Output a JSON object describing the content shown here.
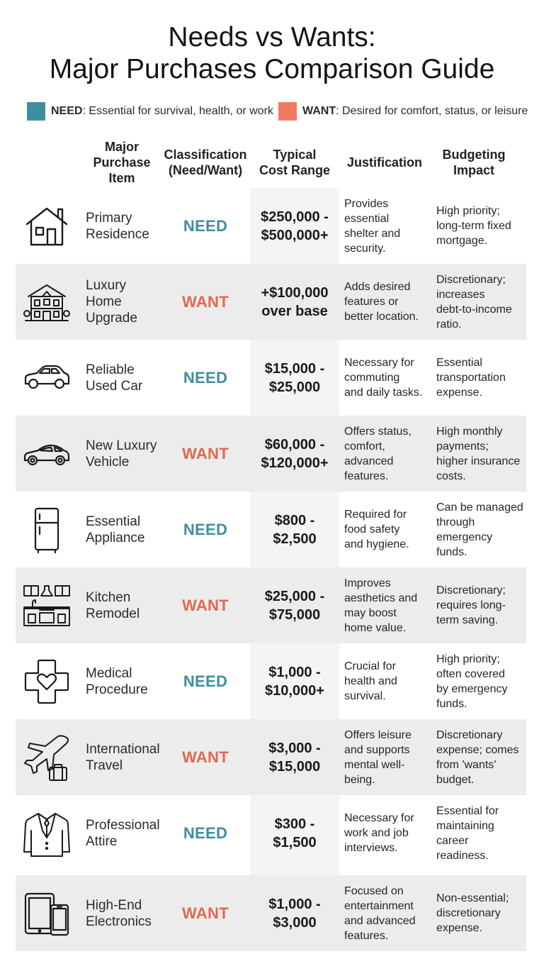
{
  "title": {
    "line1": "Needs vs Wants:",
    "line2": "Major Purchases Comparison Guide"
  },
  "legend": {
    "need": {
      "label": "NEED",
      "description": ": Essential for survival, health, or work",
      "color": "#3f8e9f"
    },
    "want": {
      "label": "WANT",
      "description": ": Desired for comfort, status, or leisure",
      "color": "#e4674f"
    }
  },
  "headers": {
    "item": "Major\nPurchase\nItem",
    "classification": "Classification\n(Need/Want)",
    "cost": "Typical\nCost Range",
    "justification": "Justification",
    "budget": "Budgeting\nImpact"
  },
  "rows": [
    {
      "icon": "house-icon",
      "item": "Primary\nResidence",
      "classification": "NEED",
      "cost": "$250,000 -\n$500,000+",
      "justification": "Provides\nessential\nshelter and\nsecurity.",
      "budget": "High priority;\nlong-term fixed\nmortgage."
    },
    {
      "icon": "mansion-icon",
      "item": "Luxury\nHome\nUpgrade",
      "classification": "WANT",
      "cost": "+$100,000\nover base",
      "justification": "Adds desired\nfeatures or\nbetter location.",
      "budget": "Discretionary;\nincreases\ndebt-to-income\nratio."
    },
    {
      "icon": "sedan-icon",
      "item": "Reliable\nUsed Car",
      "classification": "NEED",
      "cost": "$15,000 -\n$25,000",
      "justification": "Necessary for\ncommuting\nand daily tasks.",
      "budget": "Essential\ntransportation\nexpense."
    },
    {
      "icon": "sports-car-icon",
      "item": "New Luxury\nVehicle",
      "classification": "WANT",
      "cost": "$60,000 -\n$120,000+",
      "justification": "Offers status,\ncomfort,\nadvanced\nfeatures.",
      "budget": "High monthly\npayments;\nhigher insurance\ncosts."
    },
    {
      "icon": "refrigerator-icon",
      "item": "Essential\nAppliance",
      "classification": "NEED",
      "cost": "$800 -\n$2,500",
      "justification": "Required for\nfood safety\nand hygiene.",
      "budget": "Can be managed\nthrough\nemergency\nfunds."
    },
    {
      "icon": "kitchen-icon",
      "item": "Kitchen\nRemodel",
      "classification": "WANT",
      "cost": "$25,000 -\n$75,000",
      "justification": "Improves\naesthetics and\nmay boost\nhome value.",
      "budget": "Discretionary;\nrequires long-\nterm saving."
    },
    {
      "icon": "medical-cross-heart-icon",
      "item": "Medical\nProcedure",
      "classification": "NEED",
      "cost": "$1,000 -\n$10,000+",
      "justification": "Crucial for\nhealth and\nsurvival.",
      "budget": "High priority;\noften covered\nby emergency\nfunds."
    },
    {
      "icon": "airplane-luggage-icon",
      "item": "International\nTravel",
      "classification": "WANT",
      "cost": "$3,000 -\n$15,000",
      "justification": "Offers leisure\nand supports\nmental well-\nbeing.",
      "budget": "Discretionary\nexpense; comes\nfrom 'wants'\nbudget."
    },
    {
      "icon": "suit-icon",
      "item": "Professional\nAttire",
      "classification": "NEED",
      "cost": "$300 -\n$1,500",
      "justification": "Necessary for\nwork and job\ninterviews.",
      "budget": "Essential for\nmaintaining\ncareer\nreadiness."
    },
    {
      "icon": "tablet-phone-icon",
      "item": "High-End\nElectronics",
      "classification": "WANT",
      "cost": "$1,000 -\n$3,000",
      "justification": "Focused on\nentertainment\nand advanced\nfeatures.",
      "budget": "Non-essential;\ndiscretionary\nexpense."
    }
  ]
}
